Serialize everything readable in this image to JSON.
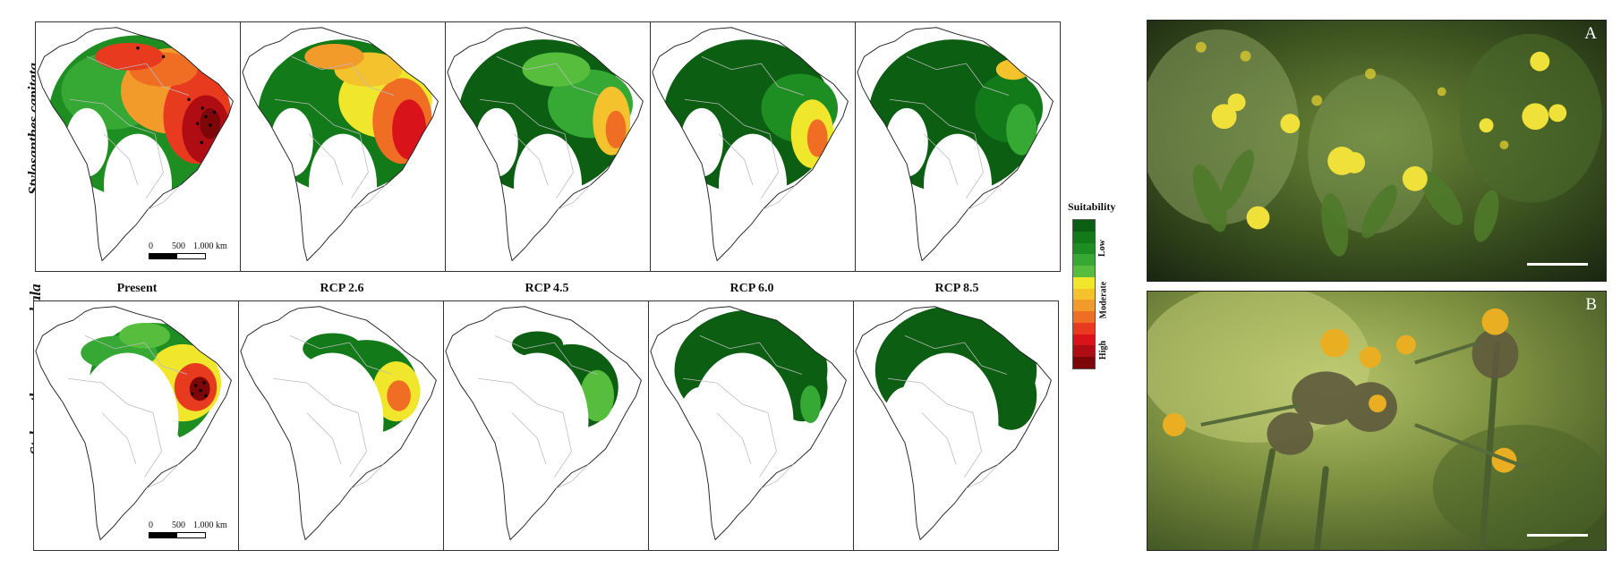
{
  "rows": [
    {
      "species": "Stylosanthes capitata"
    },
    {
      "species": "Stylosanthes macrocephala"
    }
  ],
  "scenarios": [
    "Present",
    "RCP 2.6",
    "RCP 4.5",
    "RCP 6.0",
    "RCP 8.5"
  ],
  "scalebar": {
    "ticks": [
      "0",
      "500",
      "1.000 km"
    ]
  },
  "legend": {
    "title": "Suitability",
    "classes": [
      "Low",
      "Moderate",
      "High"
    ],
    "colors": [
      "#0b5e12",
      "#137a1a",
      "#1f8e22",
      "#36a834",
      "#56be3c",
      "#f0e62c",
      "#f3c22c",
      "#f29a2a",
      "#ef6e24",
      "#e83a1e",
      "#d8141a",
      "#b00c14",
      "#7c0608"
    ]
  },
  "photos": [
    {
      "letter": "A",
      "subject": "yellow-flowers-photo"
    },
    {
      "letter": "B",
      "subject": "orange-flowers-photo"
    }
  ]
}
